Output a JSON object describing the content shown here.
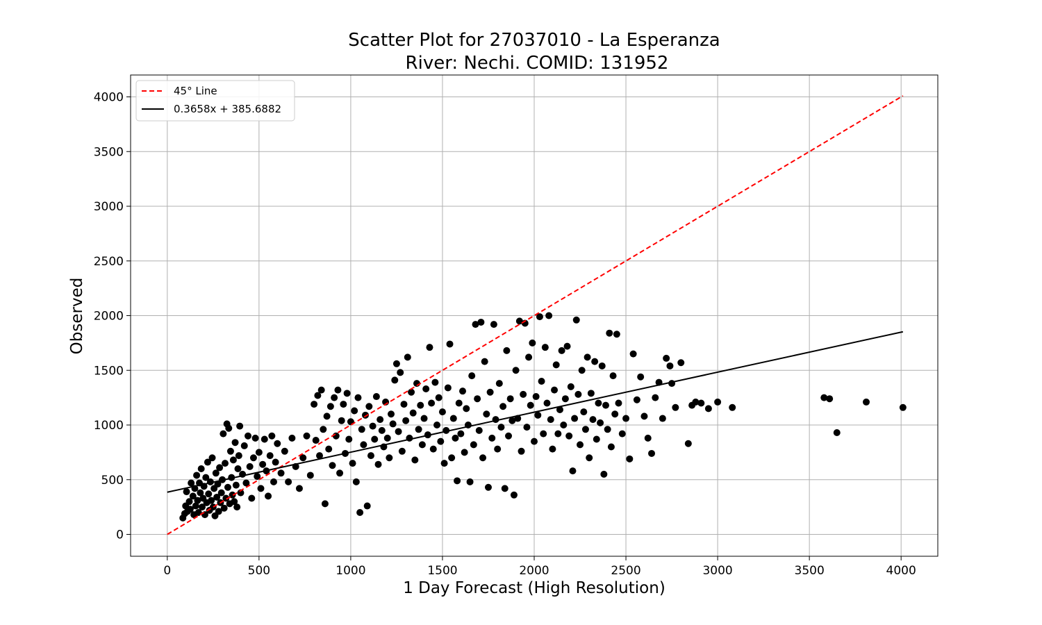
{
  "chart_data": {
    "type": "scatter",
    "title_line1": "Scatter Plot for 27037010 - La Esperanza",
    "title_line2": "River: Nechi. COMID: 131952",
    "xlabel": "1 Day Forecast (High Resolution)",
    "ylabel": "Observed",
    "xlim": [
      -200,
      4200
    ],
    "ylim": [
      -200,
      4200
    ],
    "xticks": [
      0,
      500,
      1000,
      1500,
      2000,
      2500,
      3000,
      3500,
      4000
    ],
    "yticks": [
      0,
      500,
      1000,
      1500,
      2000,
      2500,
      3000,
      3500,
      4000
    ],
    "grid": true,
    "legend_position": "top-left",
    "legend": [
      {
        "label": "45° Line",
        "color": "#ff0000",
        "style": "dashed"
      },
      {
        "label": "0.3658x + 385.6882",
        "color": "#000000",
        "style": "solid"
      }
    ],
    "reference_line": {
      "x": [
        0,
        4010
      ],
      "y": [
        0,
        4010
      ],
      "color": "#ff0000"
    },
    "fit_line": {
      "slope": 0.3658,
      "intercept": 385.6882,
      "x": [
        0,
        4010
      ],
      "color": "#000000"
    },
    "series": [
      {
        "marker_color": "#000000",
        "points": [
          [
            85,
            150
          ],
          [
            95,
            190
          ],
          [
            100,
            260
          ],
          [
            105,
            390
          ],
          [
            110,
            210
          ],
          [
            120,
            300
          ],
          [
            125,
            230
          ],
          [
            130,
            470
          ],
          [
            140,
            350
          ],
          [
            145,
            180
          ],
          [
            150,
            420
          ],
          [
            155,
            260
          ],
          [
            160,
            540
          ],
          [
            165,
            310
          ],
          [
            170,
            200
          ],
          [
            175,
            470
          ],
          [
            180,
            380
          ],
          [
            185,
            600
          ],
          [
            190,
            250
          ],
          [
            195,
            330
          ],
          [
            200,
            440
          ],
          [
            205,
            180
          ],
          [
            210,
            520
          ],
          [
            215,
            290
          ],
          [
            220,
            660
          ],
          [
            225,
            370
          ],
          [
            230,
            220
          ],
          [
            235,
            480
          ],
          [
            240,
            310
          ],
          [
            245,
            700
          ],
          [
            250,
            250
          ],
          [
            255,
            420
          ],
          [
            260,
            170
          ],
          [
            265,
            560
          ],
          [
            270,
            340
          ],
          [
            275,
            460
          ],
          [
            280,
            210
          ],
          [
            285,
            610
          ],
          [
            290,
            290
          ],
          [
            295,
            380
          ],
          [
            300,
            500
          ],
          [
            305,
            920
          ],
          [
            310,
            240
          ],
          [
            315,
            650
          ],
          [
            320,
            330
          ],
          [
            325,
            1010
          ],
          [
            330,
            430
          ],
          [
            335,
            970
          ],
          [
            340,
            280
          ],
          [
            345,
            760
          ],
          [
            350,
            520
          ],
          [
            355,
            360
          ],
          [
            360,
            680
          ],
          [
            365,
            300
          ],
          [
            370,
            840
          ],
          [
            375,
            450
          ],
          [
            380,
            250
          ],
          [
            385,
            600
          ],
          [
            390,
            720
          ],
          [
            395,
            990
          ],
          [
            400,
            380
          ],
          [
            410,
            550
          ],
          [
            420,
            810
          ],
          [
            430,
            470
          ],
          [
            440,
            900
          ],
          [
            450,
            620
          ],
          [
            460,
            330
          ],
          [
            470,
            700
          ],
          [
            480,
            880
          ],
          [
            490,
            530
          ],
          [
            500,
            750
          ],
          [
            510,
            420
          ],
          [
            520,
            640
          ],
          [
            530,
            870
          ],
          [
            540,
            580
          ],
          [
            550,
            350
          ],
          [
            560,
            720
          ],
          [
            570,
            900
          ],
          [
            580,
            480
          ],
          [
            590,
            660
          ],
          [
            600,
            830
          ],
          [
            620,
            560
          ],
          [
            640,
            760
          ],
          [
            660,
            480
          ],
          [
            680,
            880
          ],
          [
            700,
            620
          ],
          [
            720,
            420
          ],
          [
            740,
            700
          ],
          [
            760,
            900
          ],
          [
            780,
            540
          ],
          [
            800,
            1190
          ],
          [
            810,
            860
          ],
          [
            820,
            1270
          ],
          [
            830,
            720
          ],
          [
            840,
            1320
          ],
          [
            850,
            960
          ],
          [
            860,
            280
          ],
          [
            870,
            1080
          ],
          [
            880,
            780
          ],
          [
            890,
            1170
          ],
          [
            900,
            630
          ],
          [
            910,
            1250
          ],
          [
            920,
            900
          ],
          [
            930,
            1320
          ],
          [
            940,
            560
          ],
          [
            950,
            1040
          ],
          [
            960,
            1190
          ],
          [
            970,
            740
          ],
          [
            980,
            1290
          ],
          [
            990,
            870
          ],
          [
            1000,
            1030
          ],
          [
            1010,
            650
          ],
          [
            1020,
            1130
          ],
          [
            1030,
            480
          ],
          [
            1040,
            1250
          ],
          [
            1050,
            200
          ],
          [
            1060,
            960
          ],
          [
            1070,
            820
          ],
          [
            1080,
            1090
          ],
          [
            1090,
            260
          ],
          [
            1100,
            1170
          ],
          [
            1110,
            720
          ],
          [
            1120,
            990
          ],
          [
            1130,
            870
          ],
          [
            1140,
            1260
          ],
          [
            1150,
            640
          ],
          [
            1160,
            1050
          ],
          [
            1170,
            950
          ],
          [
            1180,
            800
          ],
          [
            1190,
            1210
          ],
          [
            1200,
            880
          ],
          [
            1210,
            700
          ],
          [
            1220,
            1100
          ],
          [
            1230,
            1010
          ],
          [
            1240,
            1410
          ],
          [
            1250,
            1560
          ],
          [
            1260,
            940
          ],
          [
            1270,
            1480
          ],
          [
            1280,
            760
          ],
          [
            1290,
            1190
          ],
          [
            1300,
            1040
          ],
          [
            1310,
            1620
          ],
          [
            1320,
            880
          ],
          [
            1330,
            1300
          ],
          [
            1340,
            1110
          ],
          [
            1350,
            680
          ],
          [
            1360,
            1380
          ],
          [
            1370,
            960
          ],
          [
            1380,
            1180
          ],
          [
            1390,
            820
          ],
          [
            1400,
            1060
          ],
          [
            1410,
            1330
          ],
          [
            1420,
            910
          ],
          [
            1430,
            1710
          ],
          [
            1440,
            1200
          ],
          [
            1450,
            780
          ],
          [
            1460,
            1390
          ],
          [
            1470,
            1000
          ],
          [
            1480,
            1250
          ],
          [
            1490,
            850
          ],
          [
            1500,
            1120
          ],
          [
            1510,
            650
          ],
          [
            1520,
            950
          ],
          [
            1530,
            1340
          ],
          [
            1540,
            1740
          ],
          [
            1550,
            700
          ],
          [
            1560,
            1060
          ],
          [
            1570,
            880
          ],
          [
            1580,
            490
          ],
          [
            1590,
            1200
          ],
          [
            1600,
            920
          ],
          [
            1610,
            1310
          ],
          [
            1620,
            750
          ],
          [
            1630,
            1150
          ],
          [
            1640,
            1000
          ],
          [
            1650,
            480
          ],
          [
            1660,
            1450
          ],
          [
            1670,
            820
          ],
          [
            1680,
            1920
          ],
          [
            1690,
            1240
          ],
          [
            1700,
            950
          ],
          [
            1710,
            1940
          ],
          [
            1720,
            700
          ],
          [
            1730,
            1580
          ],
          [
            1740,
            1100
          ],
          [
            1750,
            430
          ],
          [
            1760,
            1300
          ],
          [
            1770,
            880
          ],
          [
            1780,
            1920
          ],
          [
            1790,
            1050
          ],
          [
            1800,
            780
          ],
          [
            1810,
            1380
          ],
          [
            1820,
            980
          ],
          [
            1830,
            1170
          ],
          [
            1840,
            420
          ],
          [
            1850,
            1680
          ],
          [
            1860,
            900
          ],
          [
            1870,
            1240
          ],
          [
            1880,
            1040
          ],
          [
            1890,
            360
          ],
          [
            1900,
            1500
          ],
          [
            1910,
            1060
          ],
          [
            1920,
            1950
          ],
          [
            1930,
            760
          ],
          [
            1940,
            1280
          ],
          [
            1950,
            1930
          ],
          [
            1960,
            980
          ],
          [
            1970,
            1620
          ],
          [
            1980,
            1180
          ],
          [
            1990,
            1750
          ],
          [
            2000,
            850
          ],
          [
            2010,
            1260
          ],
          [
            2020,
            1090
          ],
          [
            2030,
            1990
          ],
          [
            2040,
            1400
          ],
          [
            2050,
            920
          ],
          [
            2060,
            1710
          ],
          [
            2070,
            1200
          ],
          [
            2080,
            2000
          ],
          [
            2090,
            1050
          ],
          [
            2100,
            780
          ],
          [
            2110,
            1320
          ],
          [
            2120,
            1550
          ],
          [
            2130,
            920
          ],
          [
            2140,
            1140
          ],
          [
            2150,
            1680
          ],
          [
            2160,
            1000
          ],
          [
            2170,
            1240
          ],
          [
            2180,
            1720
          ],
          [
            2190,
            900
          ],
          [
            2200,
            1350
          ],
          [
            2210,
            580
          ],
          [
            2220,
            1060
          ],
          [
            2230,
            1960
          ],
          [
            2240,
            1280
          ],
          [
            2250,
            820
          ],
          [
            2260,
            1500
          ],
          [
            2270,
            1120
          ],
          [
            2280,
            960
          ],
          [
            2290,
            1620
          ],
          [
            2300,
            700
          ],
          [
            2310,
            1290
          ],
          [
            2320,
            1050
          ],
          [
            2330,
            1580
          ],
          [
            2340,
            870
          ],
          [
            2350,
            1200
          ],
          [
            2360,
            1020
          ],
          [
            2370,
            1540
          ],
          [
            2380,
            550
          ],
          [
            2390,
            1180
          ],
          [
            2400,
            960
          ],
          [
            2410,
            1840
          ],
          [
            2420,
            800
          ],
          [
            2430,
            1450
          ],
          [
            2440,
            1100
          ],
          [
            2450,
            1830
          ],
          [
            2460,
            1200
          ],
          [
            2480,
            920
          ],
          [
            2500,
            1060
          ],
          [
            2520,
            690
          ],
          [
            2540,
            1650
          ],
          [
            2560,
            1230
          ],
          [
            2580,
            1440
          ],
          [
            2600,
            1080
          ],
          [
            2620,
            880
          ],
          [
            2640,
            740
          ],
          [
            2660,
            1250
          ],
          [
            2680,
            1390
          ],
          [
            2700,
            1060
          ],
          [
            2720,
            1610
          ],
          [
            2740,
            1540
          ],
          [
            2750,
            1380
          ],
          [
            2770,
            1160
          ],
          [
            2800,
            1570
          ],
          [
            2840,
            830
          ],
          [
            2860,
            1180
          ],
          [
            2880,
            1210
          ],
          [
            2910,
            1200
          ],
          [
            2950,
            1150
          ],
          [
            3000,
            1210
          ],
          [
            3080,
            1160
          ],
          [
            3580,
            1250
          ],
          [
            3610,
            1240
          ],
          [
            3650,
            930
          ],
          [
            3810,
            1210
          ],
          [
            4010,
            1160
          ]
        ]
      }
    ]
  }
}
